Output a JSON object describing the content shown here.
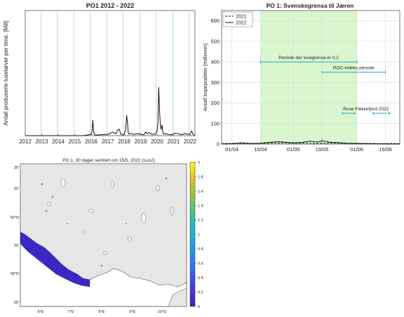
{
  "chart_data": [
    {
      "type": "line",
      "title": "PO1 2012 - 2022",
      "ylabel": "Antall produserte luselarver per time, [Mill]",
      "xlabel": "",
      "x_tick_labels": [
        "2012",
        "2013",
        "2014",
        "2015",
        "2016",
        "2017",
        "2018",
        "2019",
        "2020",
        "2021",
        "2022"
      ],
      "xlim": [
        2012,
        2022.3
      ],
      "ylim": [
        0,
        40
      ],
      "grid_years": [
        2012.95,
        2013.95,
        2014.95,
        2015.95,
        2016.95,
        2017.95,
        2018.95,
        2019.95,
        2020.95,
        2021.95
      ],
      "series": [
        {
          "x": [
            2012.0,
            2015.5,
            2016.0,
            2016.05,
            2016.1,
            2016.15,
            2016.2,
            2016.3,
            2017.0,
            2017.3,
            2017.5,
            2017.6,
            2017.7,
            2017.8,
            2017.9,
            2018.0,
            2018.1,
            2018.15,
            2018.2,
            2018.25,
            2018.3,
            2018.4,
            2018.6,
            2018.8,
            2019.0,
            2019.2,
            2019.3,
            2019.4,
            2019.5,
            2019.7,
            2019.9,
            2020.0,
            2020.05,
            2020.1,
            2020.15,
            2020.2,
            2020.25,
            2020.3,
            2020.35,
            2020.4,
            2020.5,
            2020.7,
            2020.9,
            2021.1,
            2021.3,
            2021.5,
            2021.7,
            2021.9,
            2022.0,
            2022.1,
            2022.15,
            2022.2,
            2022.3
          ],
          "y": [
            0,
            0,
            0.4,
            1.5,
            5,
            1.2,
            0.3,
            0.2,
            0.4,
            1.1,
            0.6,
            1.8,
            2.1,
            0.5,
            0.2,
            0.4,
            2.0,
            6.5,
            4.5,
            1.0,
            0.5,
            0.7,
            0.4,
            0.6,
            0.5,
            0.3,
            1.2,
            0.6,
            1.0,
            0.4,
            0.5,
            1.5,
            4.0,
            15.5,
            8.0,
            3.0,
            2.0,
            3.5,
            1.0,
            0.5,
            0.6,
            0.4,
            0.3,
            0.8,
            0.6,
            0.3,
            0.7,
            0.4,
            0.5,
            1.5,
            0.8,
            0.3,
            0.2
          ]
        }
      ]
    },
    {
      "type": "line",
      "title": "PO 1: Svenskegrensa til Jæren",
      "ylabel": "Antall kopepoditter [millioner]",
      "xlabel": "",
      "x_tick_labels": [
        "01/04",
        "15/04",
        "01/05",
        "15/05",
        "01/06",
        "15/06"
      ],
      "x_tick_days": [
        0,
        14,
        30,
        44,
        61,
        75
      ],
      "xlim": [
        -5,
        82
      ],
      "ylim": [
        0,
        650
      ],
      "y_ticks": [
        0,
        100,
        200,
        300,
        400,
        500,
        600
      ],
      "shaded_range": [
        14,
        61
      ],
      "grid": true,
      "legend": {
        "position": "top-left",
        "entries": [
          "2021",
          "2022"
        ]
      },
      "series": [
        {
          "name": "2021",
          "style": "dashed",
          "x": [
            -5,
            2,
            8,
            14,
            20,
            26,
            30,
            36,
            40,
            44,
            50,
            56,
            61,
            67,
            72,
            78,
            82
          ],
          "y": [
            2,
            4,
            3,
            3,
            5,
            6,
            4,
            5,
            3,
            4,
            5,
            3,
            4,
            3,
            2,
            3,
            2
          ]
        },
        {
          "name": "2022",
          "style": "solid",
          "x": [
            -5,
            0,
            5,
            10,
            14,
            18,
            22,
            26,
            30,
            34,
            38,
            42,
            44,
            48,
            52,
            56,
            61,
            66,
            70,
            76,
            82
          ],
          "y": [
            1,
            2,
            6,
            3,
            4,
            8,
            12,
            9,
            6,
            8,
            14,
            10,
            16,
            9,
            7,
            4,
            3,
            2,
            2,
            1,
            1
          ]
        }
      ],
      "annotations": [
        {
          "label": "Periode der lusegrensa er 0,2",
          "x_start": 14,
          "x_end": 61,
          "y": 400
        },
        {
          "label": "ROC-indeks periode",
          "x_start": 44,
          "x_end": 75,
          "y": 350
        },
        {
          "label": "Ruse Flekkefjord 2022",
          "x_start": 54,
          "x_end": 77,
          "y": 150,
          "gap": [
            60,
            69
          ]
        }
      ]
    },
    {
      "type": "map",
      "title": "PO 1, 30 dager sentrert om 15/5, 2022 (Lus2)",
      "lon_labels": [
        "6°E",
        "7°E",
        "8°E",
        "9°E",
        "10°E"
      ],
      "lat_labels": [
        "30'",
        "59°N",
        "30'",
        "58°N",
        "30'"
      ],
      "lat_labels_top": [
        "30'"
      ],
      "colorbar": {
        "min": 0,
        "max": 2,
        "ticks": [
          "0",
          "0.2",
          "0.4",
          "0.6",
          "0.8",
          "1",
          "1.2",
          "1.4",
          "1.6",
          "1.8",
          "2"
        ]
      },
      "colors": {
        "land": "#e6e6e6",
        "sea": "#ffffff",
        "high_density": "#3b28c4"
      }
    }
  ]
}
